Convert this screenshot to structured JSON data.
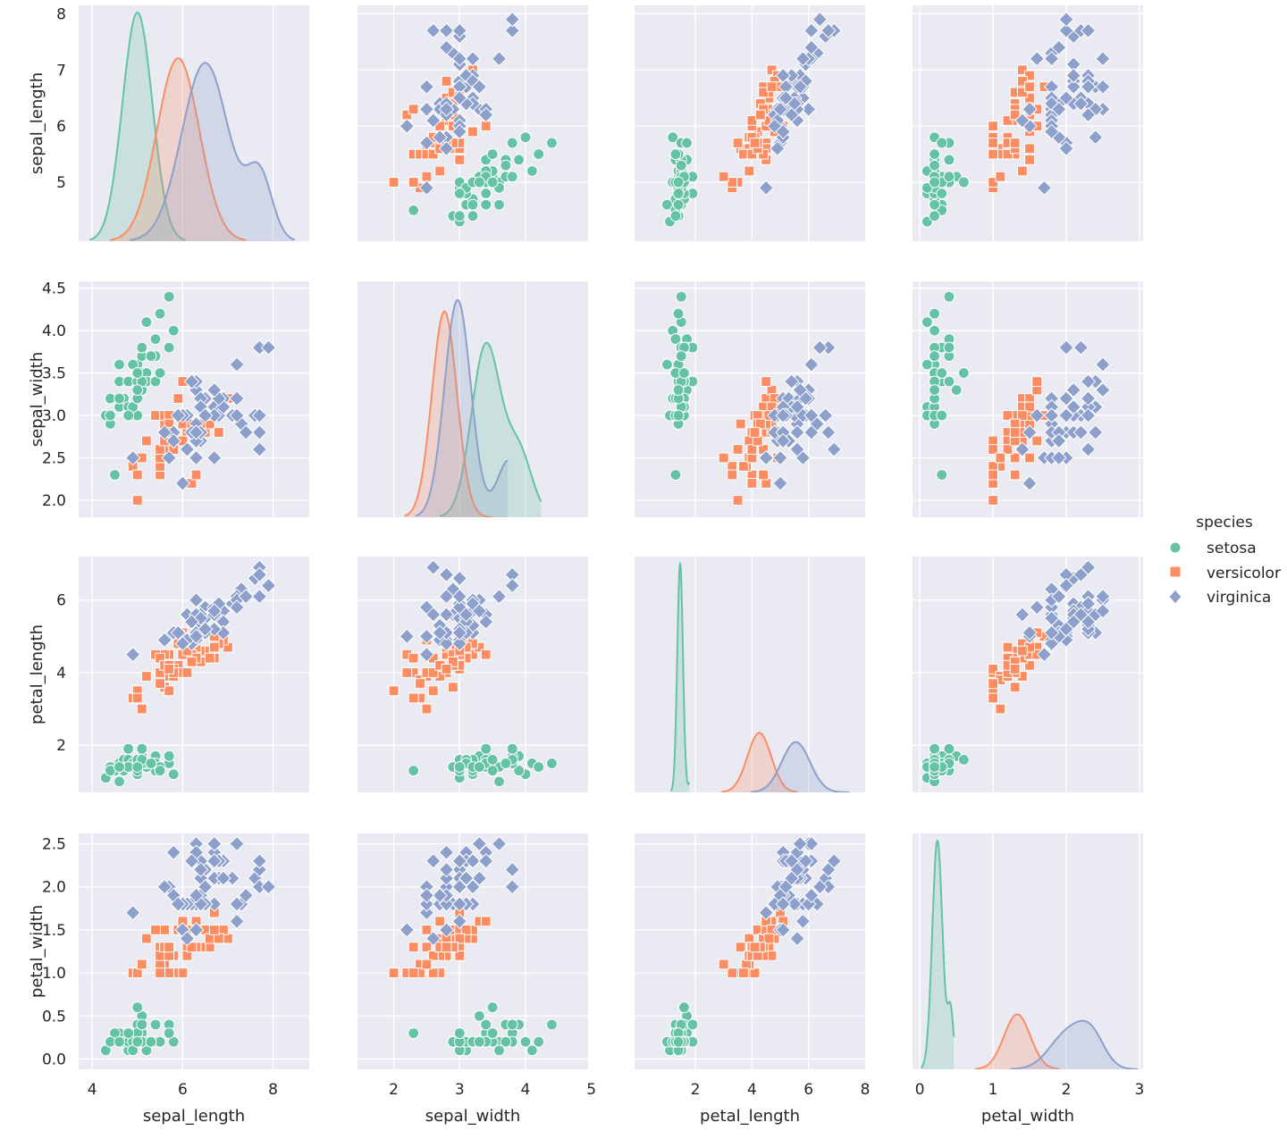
{
  "chart_data": {
    "type": "pairplot",
    "hue_title": "species",
    "variables": [
      "sepal_length",
      "sepal_width",
      "petal_length",
      "petal_width"
    ],
    "species": [
      {
        "name": "setosa",
        "color": "#66c2a5",
        "marker": "circle"
      },
      {
        "name": "versicolor",
        "color": "#fc8d62",
        "marker": "square"
      },
      {
        "name": "virginica",
        "color": "#8da0cb",
        "marker": "diamond"
      }
    ],
    "axes": {
      "sepal_length": {
        "lim": [
          3.7,
          8.8
        ],
        "ticks": [
          4,
          6,
          8
        ],
        "tick_labels": [
          "4",
          "6",
          "8"
        ],
        "row_lim": [
          3.95,
          8.15
        ],
        "row_ticks": [
          5,
          6,
          7,
          8
        ],
        "row_tick_labels": [
          "5",
          "6",
          "7",
          "8"
        ]
      },
      "sepal_width": {
        "lim": [
          1.45,
          4.95
        ],
        "ticks": [
          2,
          3,
          4,
          5
        ],
        "tick_labels": [
          "2",
          "3",
          "4",
          "5"
        ],
        "row_lim": [
          1.8,
          4.58
        ],
        "row_ticks": [
          2.0,
          2.5,
          3.0,
          3.5,
          4.0,
          4.5
        ],
        "row_tick_labels": [
          "2.0",
          "2.5",
          "3.0",
          "3.5",
          "4.0",
          "4.5"
        ]
      },
      "petal_length": {
        "lim": [
          -0.15,
          8.0
        ],
        "ticks": [
          2,
          4,
          6,
          8
        ],
        "tick_labels": [
          "2",
          "4",
          "6",
          "8"
        ],
        "row_lim": [
          0.7,
          7.2
        ],
        "row_ticks": [
          2,
          4,
          6
        ],
        "row_tick_labels": [
          "2",
          "4",
          "6"
        ]
      },
      "petal_width": {
        "lim": [
          -0.1,
          3.05
        ],
        "ticks": [
          0,
          1,
          2,
          3
        ],
        "tick_labels": [
          "0",
          "1",
          "2",
          "3"
        ],
        "row_lim": [
          -0.12,
          2.62
        ],
        "row_ticks": [
          0.0,
          0.5,
          1.0,
          1.5,
          2.0,
          2.5
        ],
        "row_tick_labels": [
          "0.0",
          "0.5",
          "1.0",
          "1.5",
          "2.0",
          "2.5"
        ]
      }
    },
    "kde_peaks": {
      "sepal_length": [
        [
          5.0,
          1.0,
          0.33
        ],
        [
          5.9,
          0.8,
          0.47
        ],
        [
          6.5,
          0.78,
          0.52
        ]
      ],
      "sepal_width": [
        [
          3.4,
          0.75,
          0.22
        ],
        [
          2.77,
          0.9,
          0.19
        ],
        [
          2.97,
          0.95,
          0.2
        ]
      ],
      "petal_length": [
        [
          1.46,
          1.0,
          0.1
        ],
        [
          4.26,
          0.26,
          0.42
        ],
        [
          5.55,
          0.22,
          0.5
        ]
      ],
      "petal_width": [
        [
          0.24,
          1.0,
          0.07
        ],
        [
          1.33,
          0.24,
          0.18
        ],
        [
          2.03,
          0.16,
          0.25
        ]
      ]
    },
    "data": {
      "setosa": [
        [
          5.1,
          3.5,
          1.4,
          0.2
        ],
        [
          4.9,
          3.0,
          1.4,
          0.2
        ],
        [
          4.7,
          3.2,
          1.3,
          0.2
        ],
        [
          4.6,
          3.1,
          1.5,
          0.2
        ],
        [
          5.0,
          3.6,
          1.4,
          0.2
        ],
        [
          5.4,
          3.9,
          1.7,
          0.4
        ],
        [
          4.6,
          3.4,
          1.4,
          0.3
        ],
        [
          5.0,
          3.4,
          1.5,
          0.2
        ],
        [
          4.4,
          2.9,
          1.4,
          0.2
        ],
        [
          4.9,
          3.1,
          1.5,
          0.1
        ],
        [
          5.4,
          3.7,
          1.5,
          0.2
        ],
        [
          4.8,
          3.4,
          1.6,
          0.2
        ],
        [
          4.8,
          3.0,
          1.4,
          0.1
        ],
        [
          4.3,
          3.0,
          1.1,
          0.1
        ],
        [
          5.8,
          4.0,
          1.2,
          0.2
        ],
        [
          5.7,
          4.4,
          1.5,
          0.4
        ],
        [
          5.4,
          3.9,
          1.3,
          0.4
        ],
        [
          5.1,
          3.5,
          1.4,
          0.3
        ],
        [
          5.7,
          3.8,
          1.7,
          0.3
        ],
        [
          5.1,
          3.8,
          1.5,
          0.3
        ],
        [
          5.4,
          3.4,
          1.7,
          0.2
        ],
        [
          5.1,
          3.7,
          1.5,
          0.4
        ],
        [
          4.6,
          3.6,
          1.0,
          0.2
        ],
        [
          5.1,
          3.3,
          1.7,
          0.5
        ],
        [
          4.8,
          3.4,
          1.9,
          0.2
        ],
        [
          5.0,
          3.0,
          1.6,
          0.2
        ],
        [
          5.0,
          3.4,
          1.6,
          0.4
        ],
        [
          5.2,
          3.5,
          1.5,
          0.2
        ],
        [
          5.2,
          3.4,
          1.4,
          0.2
        ],
        [
          4.7,
          3.2,
          1.6,
          0.2
        ],
        [
          4.8,
          3.1,
          1.6,
          0.2
        ],
        [
          5.4,
          3.4,
          1.5,
          0.4
        ],
        [
          5.2,
          4.1,
          1.5,
          0.1
        ],
        [
          5.5,
          4.2,
          1.4,
          0.2
        ],
        [
          4.9,
          3.1,
          1.5,
          0.2
        ],
        [
          5.0,
          3.2,
          1.2,
          0.2
        ],
        [
          5.5,
          3.5,
          1.3,
          0.2
        ],
        [
          4.9,
          3.6,
          1.4,
          0.1
        ],
        [
          4.4,
          3.0,
          1.3,
          0.2
        ],
        [
          5.1,
          3.4,
          1.5,
          0.2
        ],
        [
          5.0,
          3.5,
          1.3,
          0.3
        ],
        [
          4.5,
          2.3,
          1.3,
          0.3
        ],
        [
          4.4,
          3.2,
          1.3,
          0.2
        ],
        [
          5.0,
          3.5,
          1.6,
          0.6
        ],
        [
          5.1,
          3.8,
          1.9,
          0.4
        ],
        [
          4.8,
          3.0,
          1.4,
          0.3
        ],
        [
          5.1,
          3.8,
          1.6,
          0.2
        ],
        [
          4.6,
          3.2,
          1.4,
          0.2
        ],
        [
          5.3,
          3.7,
          1.5,
          0.2
        ],
        [
          5.0,
          3.3,
          1.4,
          0.2
        ]
      ],
      "versicolor": [
        [
          7.0,
          3.2,
          4.7,
          1.4
        ],
        [
          6.4,
          3.2,
          4.5,
          1.5
        ],
        [
          6.9,
          3.1,
          4.9,
          1.5
        ],
        [
          5.5,
          2.3,
          4.0,
          1.3
        ],
        [
          6.5,
          2.8,
          4.6,
          1.5
        ],
        [
          5.7,
          2.8,
          4.5,
          1.3
        ],
        [
          6.3,
          3.3,
          4.7,
          1.6
        ],
        [
          4.9,
          2.4,
          3.3,
          1.0
        ],
        [
          6.6,
          2.9,
          4.6,
          1.3
        ],
        [
          5.2,
          2.7,
          3.9,
          1.4
        ],
        [
          5.0,
          2.0,
          3.5,
          1.0
        ],
        [
          5.9,
          3.0,
          4.2,
          1.5
        ],
        [
          6.0,
          2.2,
          4.0,
          1.0
        ],
        [
          6.1,
          2.9,
          4.7,
          1.4
        ],
        [
          5.6,
          2.9,
          3.6,
          1.3
        ],
        [
          6.7,
          3.1,
          4.4,
          1.4
        ],
        [
          5.6,
          3.0,
          4.5,
          1.5
        ],
        [
          5.8,
          2.7,
          4.1,
          1.0
        ],
        [
          6.2,
          2.2,
          4.5,
          1.5
        ],
        [
          5.6,
          2.5,
          3.9,
          1.1
        ],
        [
          5.9,
          3.2,
          4.8,
          1.8
        ],
        [
          6.1,
          2.8,
          4.0,
          1.3
        ],
        [
          6.3,
          2.5,
          4.9,
          1.5
        ],
        [
          6.1,
          2.8,
          4.7,
          1.2
        ],
        [
          6.4,
          2.9,
          4.3,
          1.3
        ],
        [
          6.6,
          3.0,
          4.4,
          1.4
        ],
        [
          6.8,
          2.8,
          4.8,
          1.4
        ],
        [
          6.7,
          3.0,
          5.0,
          1.7
        ],
        [
          6.0,
          2.9,
          4.5,
          1.5
        ],
        [
          5.7,
          2.6,
          3.5,
          1.0
        ],
        [
          5.5,
          2.4,
          3.8,
          1.1
        ],
        [
          5.5,
          2.4,
          3.7,
          1.0
        ],
        [
          5.8,
          2.7,
          3.9,
          1.2
        ],
        [
          6.0,
          2.7,
          5.1,
          1.6
        ],
        [
          5.4,
          3.0,
          4.5,
          1.5
        ],
        [
          6.0,
          3.4,
          4.5,
          1.6
        ],
        [
          6.7,
          3.1,
          4.7,
          1.5
        ],
        [
          6.3,
          2.3,
          4.4,
          1.3
        ],
        [
          5.6,
          3.0,
          4.1,
          1.3
        ],
        [
          5.5,
          2.5,
          4.0,
          1.3
        ],
        [
          5.5,
          2.6,
          4.4,
          1.2
        ],
        [
          6.1,
          3.0,
          4.6,
          1.4
        ],
        [
          5.8,
          2.6,
          4.0,
          1.2
        ],
        [
          5.0,
          2.3,
          3.3,
          1.0
        ],
        [
          5.6,
          2.7,
          4.2,
          1.3
        ],
        [
          5.7,
          3.0,
          4.2,
          1.2
        ],
        [
          5.7,
          2.9,
          4.2,
          1.3
        ],
        [
          6.2,
          2.9,
          4.3,
          1.3
        ],
        [
          5.1,
          2.5,
          3.0,
          1.1
        ],
        [
          5.7,
          2.8,
          4.1,
          1.3
        ]
      ],
      "virginica": [
        [
          6.3,
          3.3,
          6.0,
          2.5
        ],
        [
          5.8,
          2.7,
          5.1,
          1.9
        ],
        [
          7.1,
          3.0,
          5.9,
          2.1
        ],
        [
          6.3,
          2.9,
          5.6,
          1.8
        ],
        [
          6.5,
          3.0,
          5.8,
          2.2
        ],
        [
          7.6,
          3.0,
          6.6,
          2.1
        ],
        [
          4.9,
          2.5,
          4.5,
          1.7
        ],
        [
          7.3,
          2.9,
          6.3,
          1.8
        ],
        [
          6.7,
          2.5,
          5.8,
          1.8
        ],
        [
          7.2,
          3.6,
          6.1,
          2.5
        ],
        [
          6.5,
          3.2,
          5.1,
          2.0
        ],
        [
          6.4,
          2.7,
          5.3,
          1.9
        ],
        [
          6.8,
          3.0,
          5.5,
          2.1
        ],
        [
          5.7,
          2.5,
          5.0,
          2.0
        ],
        [
          5.8,
          2.8,
          5.1,
          2.4
        ],
        [
          6.4,
          3.2,
          5.3,
          2.3
        ],
        [
          6.5,
          3.0,
          5.5,
          1.8
        ],
        [
          7.7,
          3.8,
          6.7,
          2.2
        ],
        [
          7.7,
          2.6,
          6.9,
          2.3
        ],
        [
          6.0,
          2.2,
          5.0,
          1.5
        ],
        [
          6.9,
          3.2,
          5.7,
          2.3
        ],
        [
          5.6,
          2.8,
          4.9,
          2.0
        ],
        [
          7.7,
          2.8,
          6.7,
          2.0
        ],
        [
          6.3,
          2.7,
          4.9,
          1.8
        ],
        [
          6.7,
          3.3,
          5.7,
          2.1
        ],
        [
          7.2,
          3.2,
          6.0,
          1.8
        ],
        [
          6.2,
          2.8,
          4.8,
          1.8
        ],
        [
          6.1,
          3.0,
          4.9,
          1.8
        ],
        [
          6.4,
          2.8,
          5.6,
          2.1
        ],
        [
          7.2,
          3.0,
          5.8,
          1.6
        ],
        [
          7.4,
          2.8,
          6.1,
          1.9
        ],
        [
          7.9,
          3.8,
          6.4,
          2.0
        ],
        [
          6.4,
          2.8,
          5.6,
          2.2
        ],
        [
          6.3,
          2.8,
          5.1,
          1.5
        ],
        [
          6.1,
          2.6,
          5.6,
          1.4
        ],
        [
          7.7,
          3.0,
          6.1,
          2.3
        ],
        [
          6.3,
          3.4,
          5.6,
          2.4
        ],
        [
          6.4,
          3.1,
          5.5,
          1.8
        ],
        [
          6.0,
          3.0,
          4.8,
          1.8
        ],
        [
          6.9,
          3.1,
          5.4,
          2.1
        ],
        [
          6.7,
          3.1,
          5.6,
          2.4
        ],
        [
          6.9,
          3.1,
          5.1,
          2.3
        ],
        [
          5.8,
          2.7,
          5.1,
          1.9
        ],
        [
          6.8,
          3.2,
          5.9,
          2.3
        ],
        [
          6.7,
          3.3,
          5.7,
          2.5
        ],
        [
          6.7,
          3.0,
          5.2,
          2.3
        ],
        [
          6.3,
          2.5,
          5.0,
          1.9
        ],
        [
          6.5,
          3.0,
          5.2,
          2.0
        ],
        [
          6.2,
          3.4,
          5.4,
          2.3
        ],
        [
          5.9,
          3.0,
          5.1,
          1.8
        ]
      ]
    }
  }
}
